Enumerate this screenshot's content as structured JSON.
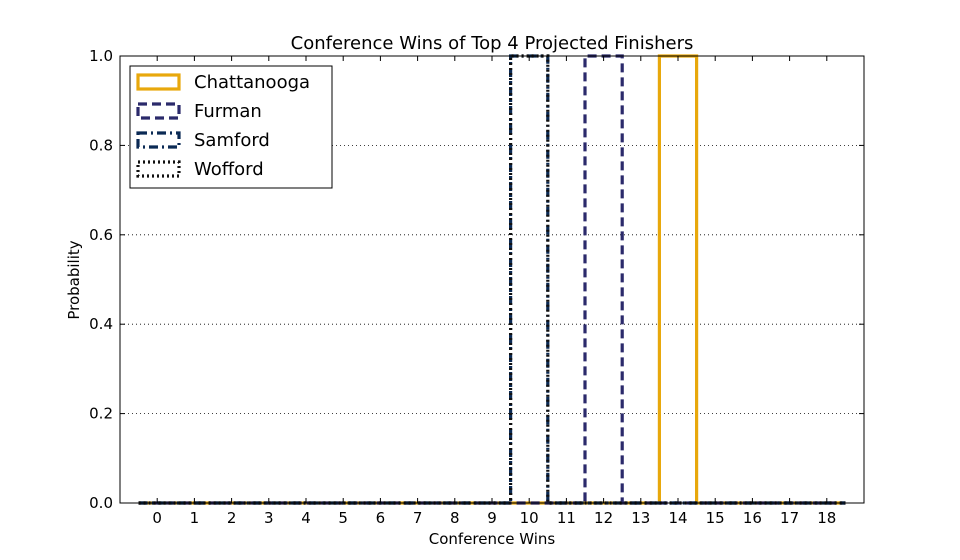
{
  "chart_data": {
    "type": "histogram",
    "title": "Conference Wins of Top 4 Projected Finishers",
    "xlabel": "Conference Wins",
    "ylabel": "Probability",
    "xlim": [
      -1,
      19
    ],
    "ylim": [
      0,
      1.0
    ],
    "x_ticks": [
      0,
      1,
      2,
      3,
      4,
      5,
      6,
      7,
      8,
      9,
      10,
      11,
      12,
      13,
      14,
      15,
      16,
      17,
      18
    ],
    "y_ticks": [
      0.0,
      0.2,
      0.4,
      0.6,
      0.8,
      1.0
    ],
    "y_tick_labels": [
      "0.0",
      "0.2",
      "0.4",
      "0.6",
      "0.8",
      "1.0"
    ],
    "grid": "y, dotted",
    "legend_position": "top-left",
    "series": [
      {
        "name": "Chattanooga",
        "color": "#e8a80c",
        "linestyle": "solid",
        "x_range": [
          -0.5,
          18.5
        ],
        "peak_value": 14,
        "peak_probability": 1.0
      },
      {
        "name": "Furman",
        "color": "#2b2a6b",
        "linestyle": "dashed",
        "x_range": [
          -0.5,
          18.5
        ],
        "peak_value": 12,
        "peak_probability": 1.0
      },
      {
        "name": "Samford",
        "color": "#0b2a55",
        "linestyle": "dashdot",
        "x_range": [
          -0.5,
          18.5
        ],
        "peak_value": 10,
        "peak_probability": 1.0
      },
      {
        "name": "Wofford",
        "color": "#111111",
        "linestyle": "dotted",
        "x_range": [
          -0.5,
          18.5
        ],
        "peak_value": 10,
        "peak_probability": 1.0
      }
    ]
  }
}
